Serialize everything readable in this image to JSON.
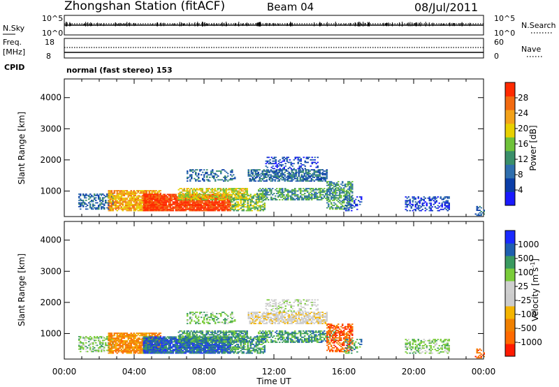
{
  "header": {
    "station": "Zhongshan Station (fitACF)",
    "beam": "Beam 04",
    "date": "08/Jul/2011"
  },
  "mode_label": "normal (fast stereo) 153",
  "colors": {
    "noise_sky": "#000000",
    "noise_search": "#000000",
    "power_scale": [
      "#1a1aff",
      "#0b3ea8",
      "#2f6fae",
      "#3a8f6a",
      "#6fc23a",
      "#e8d000",
      "#f3a21a",
      "#f26a10",
      "#ff2a00"
    ],
    "velocity_scale": [
      "#ff1a00",
      "#ff6a00",
      "#f08000",
      "#f4b400",
      "#cccccc",
      "#cfcfcf",
      "#7acc3a",
      "#3a9a60",
      "#1f5fb0",
      "#1a2aff"
    ]
  },
  "chart_data": [
    {
      "type": "line",
      "title": "N.Sky",
      "right_label": "N.Search",
      "y_ticks_left": [
        "10^5",
        "10^0"
      ],
      "y_ticks_right": [
        "10^5",
        "10^0"
      ],
      "xlim": [
        "00:00",
        "24:00"
      ],
      "series": [
        {
          "name": "N.Sky",
          "style": "solid",
          "level": 0.55
        },
        {
          "name": "N.Search",
          "style": "dotted",
          "level": 0.6
        }
      ]
    },
    {
      "type": "line",
      "ylabel_left": "Freq. [MHz]",
      "ylabel_right": "Nave",
      "y_ticks_left": [
        "18",
        "8"
      ],
      "y_ticks_right": [
        "60",
        "0"
      ],
      "cpid_label": "CPID",
      "xlim": [
        "00:00",
        "24:00"
      ],
      "series": [
        {
          "name": "Freq.",
          "style": "solid",
          "value": 12
        },
        {
          "name": "Nave",
          "style": "dotted",
          "value": 20
        }
      ]
    },
    {
      "type": "heatmap",
      "quantity": "Power",
      "ylabel": "Slant Range [km]",
      "y_ticks": [
        1000,
        2000,
        3000,
        4000
      ],
      "ylim": [
        180,
        4600
      ],
      "x_ticks": [
        "00:00",
        "04:00",
        "08:00",
        "12:00",
        "16:00",
        "20:00",
        "00:00"
      ],
      "xlim": [
        0,
        24
      ],
      "colorbar": {
        "label": "Power [dB]",
        "ticks": [
          "4",
          "8",
          "12",
          "16",
          "20",
          "24",
          "28"
        ],
        "range": [
          0,
          30
        ]
      }
    },
    {
      "type": "heatmap",
      "quantity": "Velocity",
      "ylabel": "Slant Range [km]",
      "y_ticks": [
        1000,
        2000,
        3000,
        4000
      ],
      "ylim": [
        180,
        4600
      ],
      "x_ticks": [
        "00:00",
        "04:00",
        "08:00",
        "12:00",
        "16:00",
        "20:00",
        "00:00"
      ],
      "xlabel": "Time UT",
      "xlim": [
        0,
        24
      ],
      "colorbar": {
        "label": "Velocity [m s",
        "label_superscript": "-1",
        "label_close": "]",
        "ticks": [
          "-1000",
          "-500",
          "-100",
          "-25",
          "25",
          "100",
          "500",
          "1000"
        ]
      }
    }
  ]
}
